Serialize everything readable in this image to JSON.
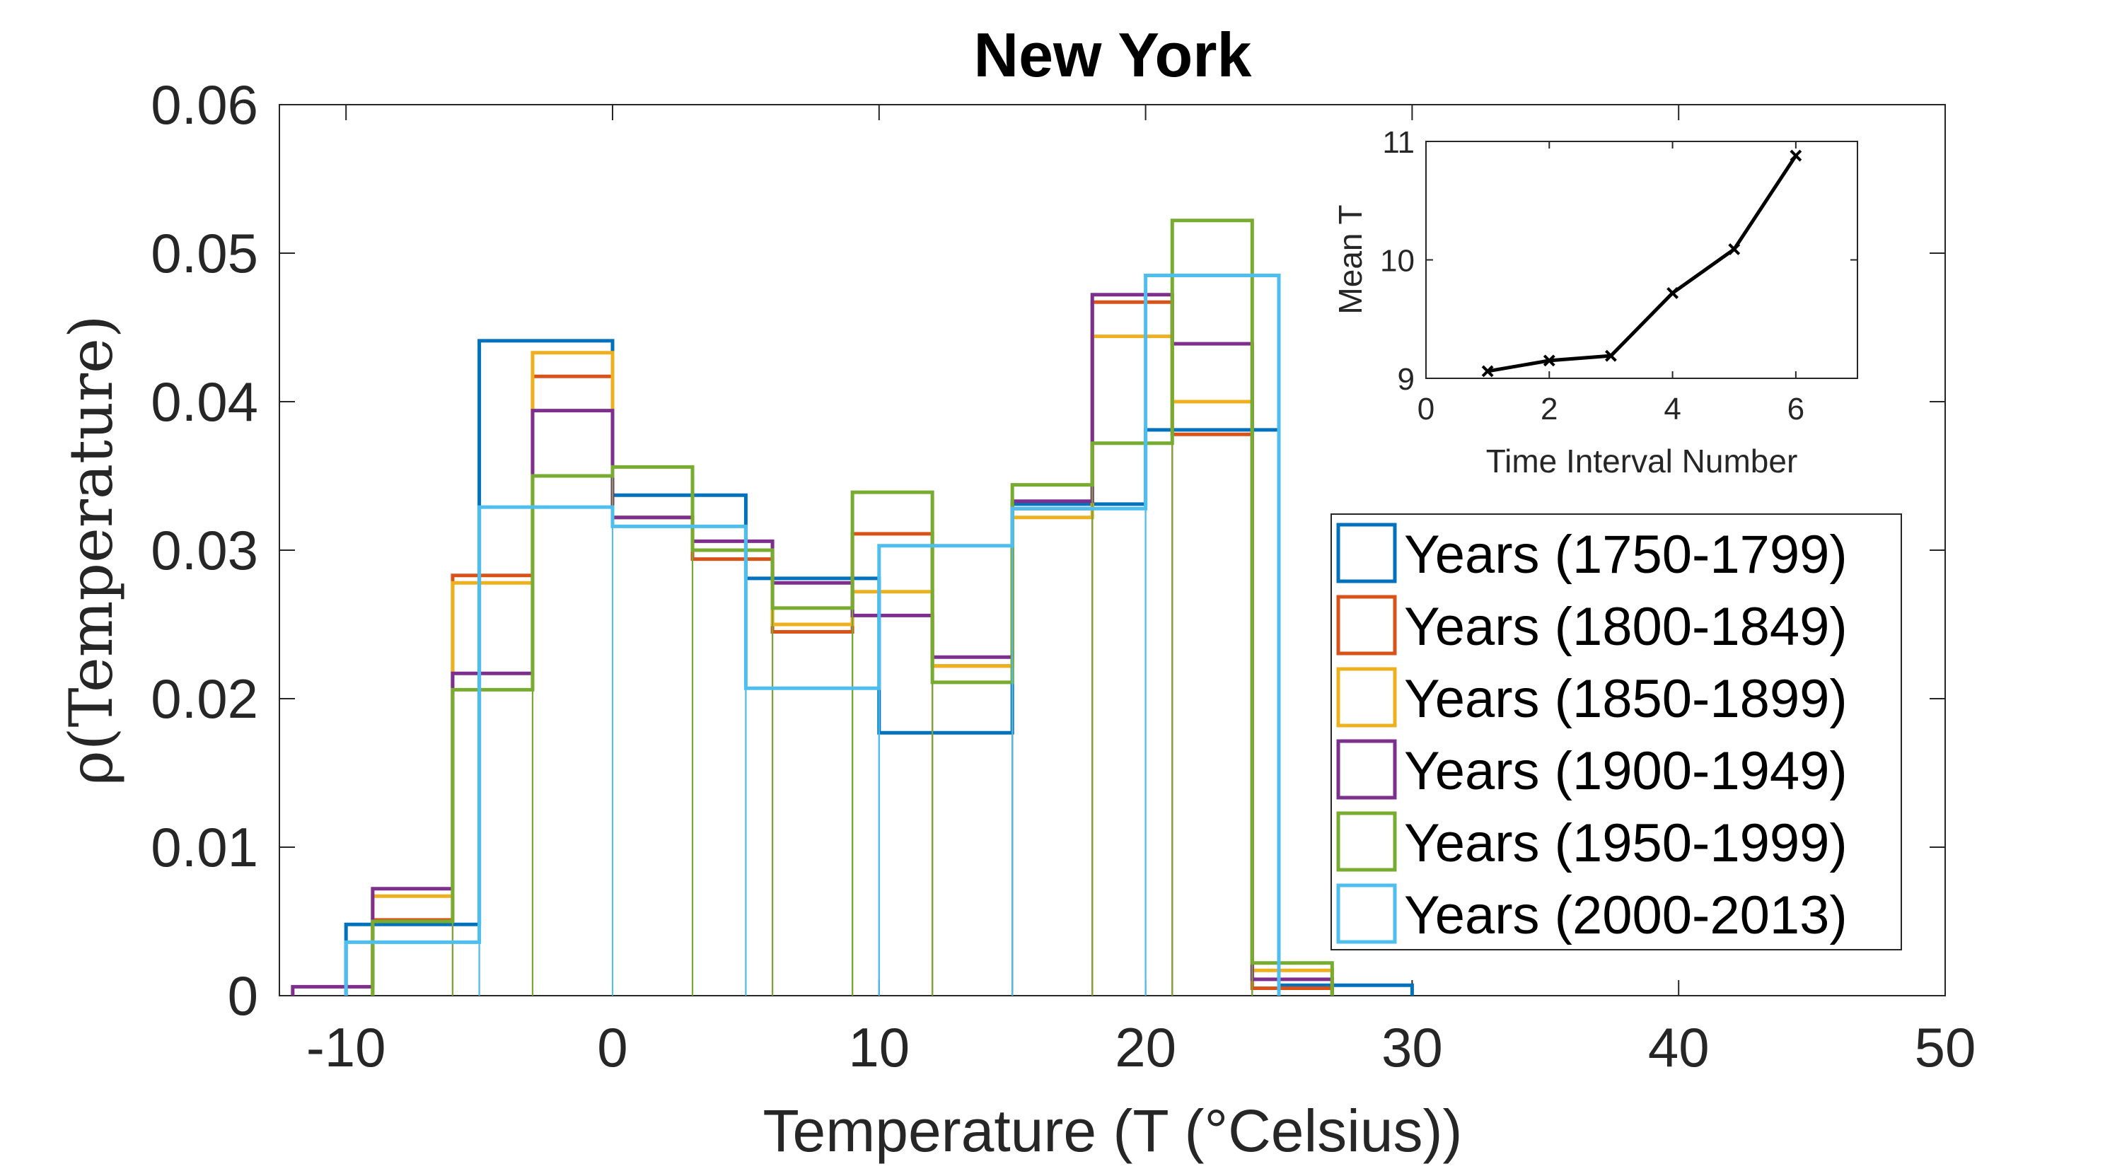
{
  "chart_data": [
    {
      "type": "histogram",
      "title": "New York",
      "xlabel": "Temperature (T (°Celsius))",
      "ylabel": "ρ(Temperature)",
      "xlim": [
        -12.5,
        50
      ],
      "ylim": [
        0,
        0.06
      ],
      "xticks": [
        -10,
        0,
        10,
        20,
        30,
        40,
        50
      ],
      "xtick_labels": [
        "-10",
        "0",
        "10",
        "20",
        "30",
        "40",
        "50"
      ],
      "yticks": [
        0,
        0.01,
        0.02,
        0.03,
        0.04,
        0.05,
        0.06
      ],
      "ytick_labels": [
        "0",
        "0.01",
        "0.02",
        "0.03",
        "0.04",
        "0.05",
        "0.06"
      ],
      "grid": false,
      "legend_position": "right-center",
      "series": [
        {
          "name": "Years (1750-1799)",
          "color": "#0072BD",
          "edges": [
            -10,
            -5,
            0,
            5,
            10,
            15,
            20,
            25,
            30
          ],
          "values": [
            0.0048,
            0.0441,
            0.0337,
            0.0281,
            0.0177,
            0.0331,
            0.0381,
            0.0007
          ]
        },
        {
          "name": "Years (1800-1849)",
          "color": "#D95319",
          "edges": [
            -9,
            -6,
            -3,
            0,
            3,
            6,
            9,
            12,
            15,
            18,
            21,
            24,
            27
          ],
          "values": [
            0.0051,
            0.0283,
            0.0417,
            0.0322,
            0.0294,
            0.0245,
            0.0311,
            0.0222,
            0.0328,
            0.0467,
            0.0378,
            0.0005
          ]
        },
        {
          "name": "Years (1850-1899)",
          "color": "#EDB120",
          "edges": [
            -9,
            -6,
            -3,
            0,
            3,
            6,
            9,
            12,
            15,
            18,
            21,
            24,
            27
          ],
          "values": [
            0.0067,
            0.0278,
            0.0433,
            0.0322,
            0.03,
            0.025,
            0.0272,
            0.0222,
            0.0322,
            0.0444,
            0.04,
            0.0017
          ]
        },
        {
          "name": "Years (1900-1949)",
          "color": "#7E2F8E",
          "edges": [
            -12,
            -9,
            -6,
            -3,
            0,
            3,
            6,
            9,
            12,
            15,
            18,
            21,
            24,
            27
          ],
          "values": [
            0.0006,
            0.0072,
            0.0217,
            0.0394,
            0.0322,
            0.0306,
            0.0278,
            0.0256,
            0.0228,
            0.0333,
            0.0472,
            0.0439,
            0.0011
          ]
        },
        {
          "name": "Years (1950-1999)",
          "color": "#77AC30",
          "edges": [
            -9,
            -6,
            -3,
            0,
            3,
            6,
            9,
            12,
            15,
            18,
            21,
            24,
            27
          ],
          "values": [
            0.005,
            0.0206,
            0.035,
            0.0356,
            0.03,
            0.0261,
            0.0339,
            0.0211,
            0.0344,
            0.0372,
            0.0522,
            0.0022
          ]
        },
        {
          "name": "Years (2000-2013)",
          "color": "#4DBEEE",
          "edges": [
            -10,
            -5,
            0,
            5,
            10,
            15,
            20,
            25
          ],
          "values": [
            0.0036,
            0.0329,
            0.0316,
            0.0207,
            0.0303,
            0.0328,
            0.0485
          ]
        }
      ]
    },
    {
      "type": "line",
      "xlabel": "Time Interval Number",
      "ylabel": "Mean T",
      "xlim": [
        0,
        7
      ],
      "ylim": [
        9,
        11
      ],
      "xticks": [
        0,
        2,
        4,
        6
      ],
      "xtick_labels": [
        "0",
        "2",
        "4",
        "6"
      ],
      "yticks": [
        9,
        10,
        11
      ],
      "ytick_labels": [
        "9",
        "10",
        "11"
      ],
      "grid": false,
      "marker": "x",
      "color": "#000000",
      "x": [
        1,
        2,
        3,
        4,
        5,
        6
      ],
      "y": [
        9.06,
        9.15,
        9.19,
        9.72,
        10.09,
        10.88
      ]
    }
  ]
}
